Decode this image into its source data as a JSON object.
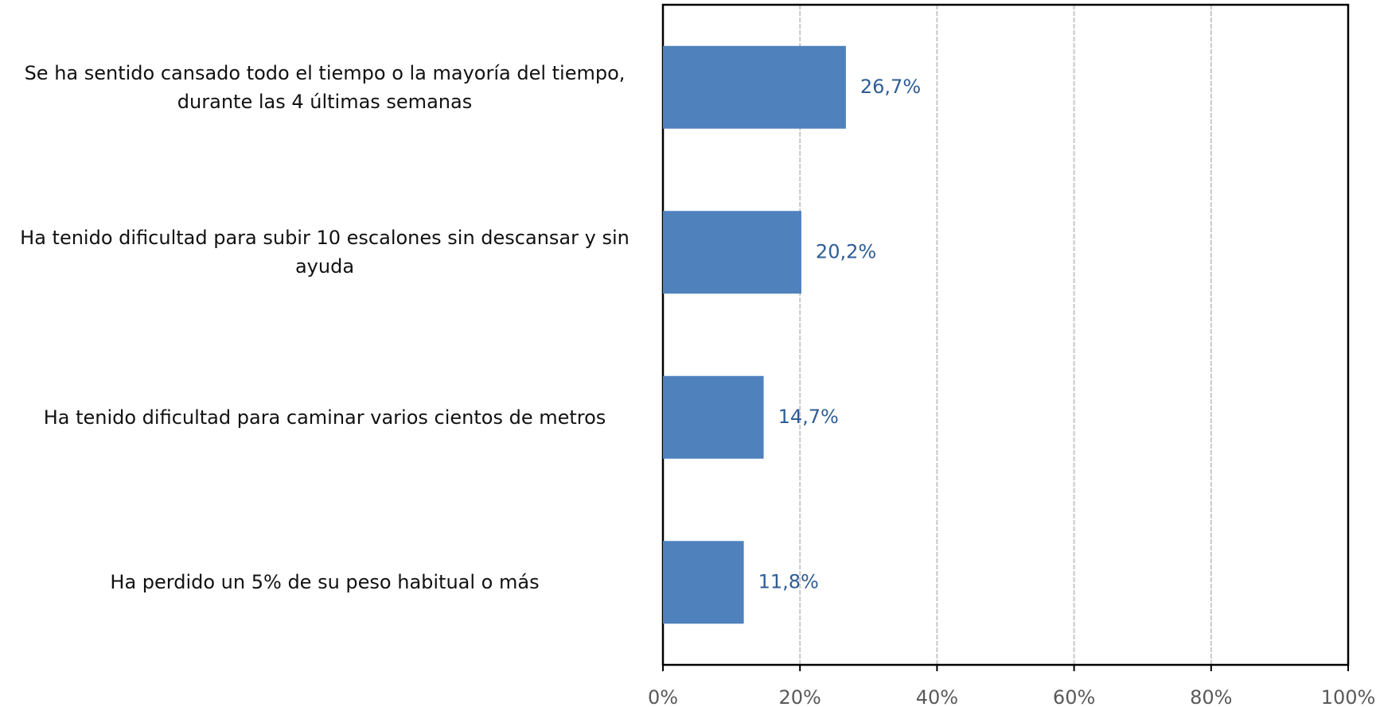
{
  "chart_data": {
    "type": "bar",
    "orientation": "horizontal",
    "categories": [
      "Se ha sentido cansado todo el tiempo o la mayoría del tiempo, durante las 4 últimas semanas",
      "Ha tenido dificultad para subir 10 escalones sin descansar y sin ayuda",
      "Ha tenido dificultad para caminar varios cientos de metros",
      "Ha perdido un 5% de su peso habitual o más"
    ],
    "values": [
      26.7,
      20.2,
      14.7,
      11.8
    ],
    "value_labels": [
      "26,7%",
      "20,2%",
      "14,7%",
      "11,8%"
    ],
    "color": "#4f81bd",
    "xlim": [
      0,
      100
    ],
    "xticks": [
      {
        "value": 0,
        "label": "0%"
      },
      {
        "value": 20,
        "label": "20%"
      },
      {
        "value": 40,
        "label": "40%"
      },
      {
        "value": 60,
        "label": "60%"
      },
      {
        "value": 80,
        "label": "80%"
      },
      {
        "value": 100,
        "label": "100%"
      }
    ],
    "grid": true
  }
}
